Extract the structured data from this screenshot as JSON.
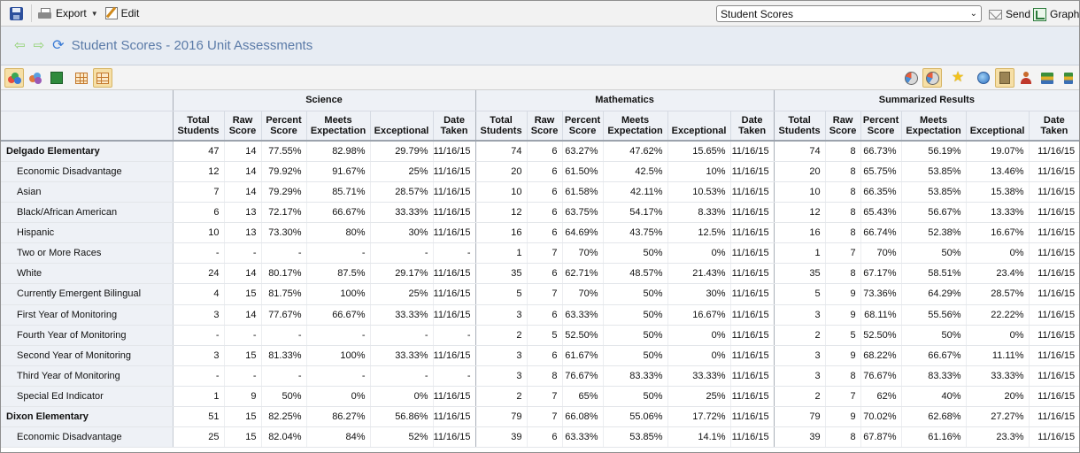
{
  "toolbar": {
    "export_label": "Export",
    "edit_label": "Edit",
    "report_select_value": "Student Scores",
    "send_label": "Send",
    "graph_label": "Graph"
  },
  "header": {
    "title": "Student Scores - 2016 Unit Assessments"
  },
  "table": {
    "groups": [
      "Science",
      "Mathematics",
      "Summarized Results"
    ],
    "columns": [
      [
        "Total",
        "Students"
      ],
      [
        "Raw",
        "Score"
      ],
      [
        "Percent",
        "Score"
      ],
      [
        "Meets",
        "Expectation"
      ],
      [
        "",
        "Exceptional"
      ],
      [
        "Date",
        "Taken"
      ]
    ],
    "rows": [
      {
        "label": "Delgado Elementary",
        "kind": "school",
        "values": [
          "47",
          "14",
          "77.55%",
          "82.98%",
          "29.79%",
          "11/16/15",
          "74",
          "6",
          "63.27%",
          "47.62%",
          "15.65%",
          "11/16/15",
          "74",
          "8",
          "66.73%",
          "56.19%",
          "19.07%",
          "11/16/15"
        ]
      },
      {
        "label": "Economic Disadvantage",
        "kind": "sub",
        "values": [
          "12",
          "14",
          "79.92%",
          "91.67%",
          "25%",
          "11/16/15",
          "20",
          "6",
          "61.50%",
          "42.5%",
          "10%",
          "11/16/15",
          "20",
          "8",
          "65.75%",
          "53.85%",
          "13.46%",
          "11/16/15"
        ]
      },
      {
        "label": "Asian",
        "kind": "sub",
        "group_start": true,
        "values": [
          "7",
          "14",
          "79.29%",
          "85.71%",
          "28.57%",
          "11/16/15",
          "10",
          "6",
          "61.58%",
          "42.11%",
          "10.53%",
          "11/16/15",
          "10",
          "8",
          "66.35%",
          "53.85%",
          "15.38%",
          "11/16/15"
        ]
      },
      {
        "label": "Black/African American",
        "kind": "sub",
        "values": [
          "6",
          "13",
          "72.17%",
          "66.67%",
          "33.33%",
          "11/16/15",
          "12",
          "6",
          "63.75%",
          "54.17%",
          "8.33%",
          "11/16/15",
          "12",
          "8",
          "65.43%",
          "56.67%",
          "13.33%",
          "11/16/15"
        ]
      },
      {
        "label": "Hispanic",
        "kind": "sub",
        "values": [
          "10",
          "13",
          "73.30%",
          "80%",
          "30%",
          "11/16/15",
          "16",
          "6",
          "64.69%",
          "43.75%",
          "12.5%",
          "11/16/15",
          "16",
          "8",
          "66.74%",
          "52.38%",
          "16.67%",
          "11/16/15"
        ]
      },
      {
        "label": "Two or More Races",
        "kind": "sub",
        "values": [
          "-",
          "-",
          "-",
          "-",
          "-",
          "-",
          "1",
          "7",
          "70%",
          "50%",
          "0%",
          "11/16/15",
          "1",
          "7",
          "70%",
          "50%",
          "0%",
          "11/16/15"
        ]
      },
      {
        "label": "White",
        "kind": "sub",
        "values": [
          "24",
          "14",
          "80.17%",
          "87.5%",
          "29.17%",
          "11/16/15",
          "35",
          "6",
          "62.71%",
          "48.57%",
          "21.43%",
          "11/16/15",
          "35",
          "8",
          "67.17%",
          "58.51%",
          "23.4%",
          "11/16/15"
        ]
      },
      {
        "label": "Currently Emergent Bilingual",
        "kind": "sub",
        "group_start": true,
        "values": [
          "4",
          "15",
          "81.75%",
          "100%",
          "25%",
          "11/16/15",
          "5",
          "7",
          "70%",
          "50%",
          "30%",
          "11/16/15",
          "5",
          "9",
          "73.36%",
          "64.29%",
          "28.57%",
          "11/16/15"
        ]
      },
      {
        "label": "First Year of Monitoring",
        "kind": "sub",
        "values": [
          "3",
          "14",
          "77.67%",
          "66.67%",
          "33.33%",
          "11/16/15",
          "3",
          "6",
          "63.33%",
          "50%",
          "16.67%",
          "11/16/15",
          "3",
          "9",
          "68.11%",
          "55.56%",
          "22.22%",
          "11/16/15"
        ]
      },
      {
        "label": "Fourth Year of Monitoring",
        "kind": "sub",
        "values": [
          "-",
          "-",
          "-",
          "-",
          "-",
          "-",
          "2",
          "5",
          "52.50%",
          "50%",
          "0%",
          "11/16/15",
          "2",
          "5",
          "52.50%",
          "50%",
          "0%",
          "11/16/15"
        ]
      },
      {
        "label": "Second Year of Monitoring",
        "kind": "sub",
        "values": [
          "3",
          "15",
          "81.33%",
          "100%",
          "33.33%",
          "11/16/15",
          "3",
          "6",
          "61.67%",
          "50%",
          "0%",
          "11/16/15",
          "3",
          "9",
          "68.22%",
          "66.67%",
          "11.11%",
          "11/16/15"
        ]
      },
      {
        "label": "Third Year of Monitoring",
        "kind": "sub",
        "values": [
          "-",
          "-",
          "-",
          "-",
          "-",
          "-",
          "3",
          "8",
          "76.67%",
          "83.33%",
          "33.33%",
          "11/16/15",
          "3",
          "8",
          "76.67%",
          "83.33%",
          "33.33%",
          "11/16/15"
        ]
      },
      {
        "label": "Special Ed Indicator",
        "kind": "sub",
        "group_start": true,
        "values": [
          "1",
          "9",
          "50%",
          "0%",
          "0%",
          "11/16/15",
          "2",
          "7",
          "65%",
          "50%",
          "25%",
          "11/16/15",
          "2",
          "7",
          "62%",
          "40%",
          "20%",
          "11/16/15"
        ]
      },
      {
        "label": "Dixon Elementary",
        "kind": "school",
        "group_start": true,
        "values": [
          "51",
          "15",
          "82.25%",
          "86.27%",
          "56.86%",
          "11/16/15",
          "79",
          "7",
          "66.08%",
          "55.06%",
          "17.72%",
          "11/16/15",
          "79",
          "9",
          "70.02%",
          "62.68%",
          "27.27%",
          "11/16/15"
        ]
      },
      {
        "label": "Economic Disadvantage",
        "kind": "sub",
        "group_start": true,
        "values": [
          "25",
          "15",
          "82.04%",
          "84%",
          "52%",
          "11/16/15",
          "39",
          "6",
          "63.33%",
          "53.85%",
          "14.1%",
          "11/16/15",
          "39",
          "8",
          "67.87%",
          "61.16%",
          "23.3%",
          "11/16/15"
        ]
      }
    ]
  }
}
